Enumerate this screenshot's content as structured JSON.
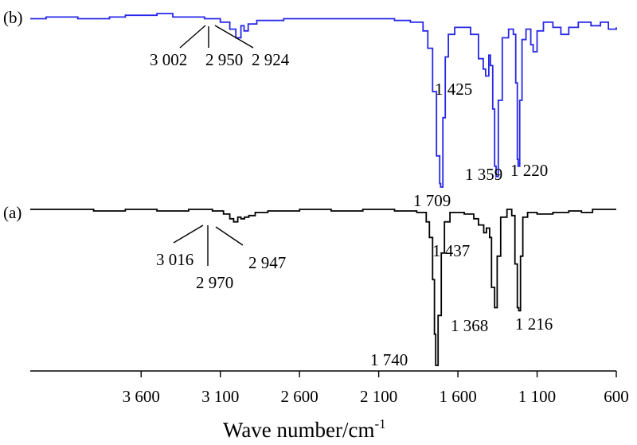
{
  "chart_data": {
    "type": "line",
    "xlabel": "Wave number/cm",
    "xlabel_superscript": "-1",
    "xlim": [
      4300,
      600
    ],
    "x_reversed": true,
    "x_ticks": [
      3600,
      3100,
      2600,
      2100,
      1600,
      1100,
      600
    ],
    "x_tick_labels": [
      "3 600",
      "3 100",
      "2 600",
      "2 100",
      "1 600",
      "1 100",
      "600"
    ],
    "grid": false,
    "legend": "none",
    "series": [
      {
        "name": "(b)",
        "color": "#2727e8",
        "points": [
          [
            4300,
            0.03
          ],
          [
            4200,
            0.02
          ],
          [
            4000,
            0.03
          ],
          [
            3800,
            0.02
          ],
          [
            3700,
            0.01
          ],
          [
            3500,
            0.0
          ],
          [
            3400,
            0.02
          ],
          [
            3200,
            0.03
          ],
          [
            3100,
            0.05
          ],
          [
            3040,
            0.09
          ],
          [
            3002,
            0.14
          ],
          [
            2970,
            0.07
          ],
          [
            2950,
            0.1
          ],
          [
            2924,
            0.06
          ],
          [
            2870,
            0.04
          ],
          [
            2700,
            0.03
          ],
          [
            2400,
            0.03
          ],
          [
            2200,
            0.03
          ],
          [
            2000,
            0.04
          ],
          [
            1900,
            0.05
          ],
          [
            1820,
            0.1
          ],
          [
            1790,
            0.2
          ],
          [
            1760,
            0.45
          ],
          [
            1735,
            0.82
          ],
          [
            1715,
            0.98
          ],
          [
            1709,
            1.0
          ],
          [
            1695,
            0.6
          ],
          [
            1680,
            0.25
          ],
          [
            1660,
            0.12
          ],
          [
            1620,
            0.08
          ],
          [
            1560,
            0.08
          ],
          [
            1520,
            0.12
          ],
          [
            1470,
            0.26
          ],
          [
            1440,
            0.32
          ],
          [
            1425,
            0.36
          ],
          [
            1405,
            0.24
          ],
          [
            1395,
            0.3
          ],
          [
            1380,
            0.55
          ],
          [
            1368,
            0.88
          ],
          [
            1359,
            0.94
          ],
          [
            1345,
            0.5
          ],
          [
            1320,
            0.14
          ],
          [
            1280,
            0.09
          ],
          [
            1250,
            0.12
          ],
          [
            1235,
            0.4
          ],
          [
            1225,
            0.84
          ],
          [
            1220,
            0.88
          ],
          [
            1210,
            0.5
          ],
          [
            1195,
            0.15
          ],
          [
            1170,
            0.09
          ],
          [
            1140,
            0.18
          ],
          [
            1125,
            0.22
          ],
          [
            1100,
            0.1
          ],
          [
            1060,
            0.05
          ],
          [
            1000,
            0.08
          ],
          [
            950,
            0.12
          ],
          [
            900,
            0.08
          ],
          [
            840,
            0.05
          ],
          [
            760,
            0.07
          ],
          [
            700,
            0.05
          ],
          [
            650,
            0.09
          ],
          [
            600,
            0.08
          ]
        ],
        "peak_labels": [
          {
            "text": "3 002",
            "x": 3002
          },
          {
            "text": "2 950",
            "x": 2950
          },
          {
            "text": "2 924",
            "x": 2924
          },
          {
            "text": "1 709",
            "x": 1709
          },
          {
            "text": "1 425",
            "x": 1425
          },
          {
            "text": "1 359",
            "x": 1359
          },
          {
            "text": "1 220",
            "x": 1220
          }
        ]
      },
      {
        "name": "(a)",
        "color": "#000000",
        "points": [
          [
            4300,
            0.0
          ],
          [
            4100,
            0.0
          ],
          [
            3900,
            0.01
          ],
          [
            3700,
            0.0
          ],
          [
            3500,
            0.01
          ],
          [
            3300,
            0.0
          ],
          [
            3150,
            0.01
          ],
          [
            3080,
            0.03
          ],
          [
            3040,
            0.06
          ],
          [
            3016,
            0.08
          ],
          [
            2990,
            0.05
          ],
          [
            2970,
            0.06
          ],
          [
            2947,
            0.05
          ],
          [
            2920,
            0.04
          ],
          [
            2880,
            0.02
          ],
          [
            2800,
            0.01
          ],
          [
            2600,
            0.0
          ],
          [
            2400,
            0.01
          ],
          [
            2200,
            0.0
          ],
          [
            2000,
            0.01
          ],
          [
            1860,
            0.02
          ],
          [
            1800,
            0.08
          ],
          [
            1780,
            0.18
          ],
          [
            1760,
            0.45
          ],
          [
            1748,
            0.8
          ],
          [
            1740,
            1.0
          ],
          [
            1725,
            0.68
          ],
          [
            1705,
            0.28
          ],
          [
            1685,
            0.08
          ],
          [
            1650,
            0.02
          ],
          [
            1560,
            0.03
          ],
          [
            1500,
            0.06
          ],
          [
            1470,
            0.1
          ],
          [
            1437,
            0.15
          ],
          [
            1420,
            0.12
          ],
          [
            1400,
            0.18
          ],
          [
            1388,
            0.5
          ],
          [
            1368,
            0.63
          ],
          [
            1352,
            0.3
          ],
          [
            1330,
            0.05
          ],
          [
            1290,
            0.0
          ],
          [
            1260,
            0.04
          ],
          [
            1240,
            0.35
          ],
          [
            1225,
            0.63
          ],
          [
            1216,
            0.65
          ],
          [
            1205,
            0.3
          ],
          [
            1190,
            0.05
          ],
          [
            1160,
            0.02
          ],
          [
            1100,
            0.03
          ],
          [
            1000,
            0.02
          ],
          [
            900,
            0.01
          ],
          [
            820,
            0.02
          ],
          [
            750,
            0.0
          ],
          [
            600,
            0.0
          ]
        ],
        "peak_labels": [
          {
            "text": "3 016",
            "x": 3016
          },
          {
            "text": "2 970",
            "x": 2970
          },
          {
            "text": "2 947",
            "x": 2947
          },
          {
            "text": "1 740",
            "x": 1740
          },
          {
            "text": "1 437",
            "x": 1437
          },
          {
            "text": "1 368",
            "x": 1368
          },
          {
            "text": "1 216",
            "x": 1216
          }
        ]
      }
    ]
  }
}
